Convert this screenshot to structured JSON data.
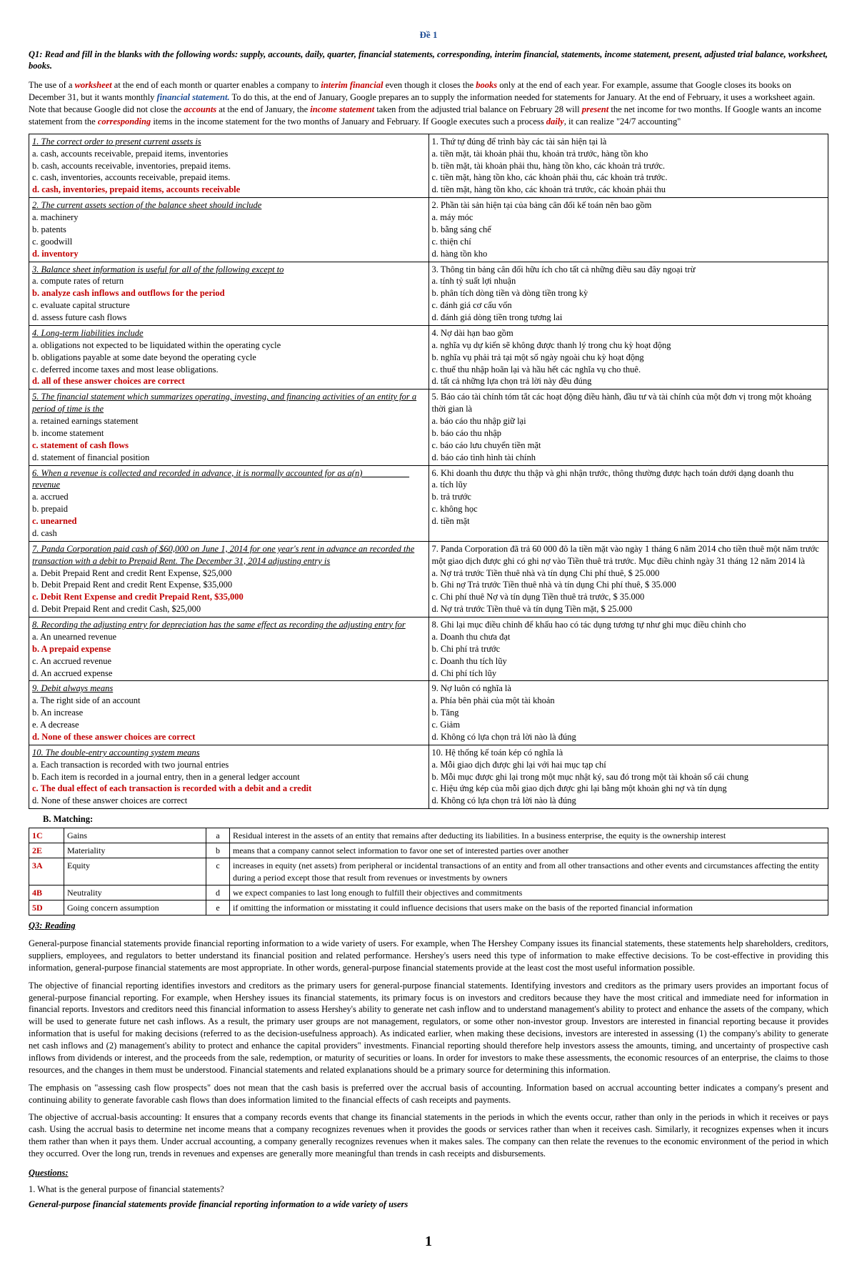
{
  "header": "Đề 1",
  "q1_prompt": "Q1: Read and fill in the blanks with the following words: supply, accounts, daily, quarter, financial statements, corresponding, interim financial, statements, income statement, present, adjusted trial balance, worksheet, books.",
  "para": {
    "p1a": "The use of a ",
    "w1": "worksheet",
    "p1b": " at the end of each month or quarter enables a company to ",
    "w2": "interim financial",
    "p1c": " even though it closes the ",
    "w3": "books",
    "p1d": " only at the end of each year. For example, assume that Google closes its books on December 31, but it wants monthly ",
    "w4": "financial statement.",
    "p1e": " To do this, at the end of January, Google prepares an to supply the information needed for statements for January. At the end of February, it uses a worksheet again. Note that because Google did not close the ",
    "w5": "accounts",
    "p1f": " at the end of January, the ",
    "w6": "income statement",
    "p1g": " taken from the adjusted trial balance on February 28 will ",
    "w7": "present",
    "p1h": " the net income for two months. If Google wants an income statement from the ",
    "w8": "corresponding",
    "p1i": " items in the income statement for the two months of January and February. If Google executes such a process ",
    "w9": "daily",
    "p1j": ", it can realize \"24/7 accounting\""
  },
  "q2": [
    {
      "qen": "1. The correct order to present current assets is",
      "qvi": "1. Thứ tự đúng để trình bày các tài sản hiện tại là",
      "en": [
        {
          "t": "a. cash, accounts receivable, prepaid items, inventories",
          "c": false
        },
        {
          "t": "b. cash, accounts receivable, inventories, prepaid items.",
          "c": false
        },
        {
          "t": "c. cash, inventories, accounts receivable, prepaid items.",
          "c": false
        },
        {
          "t": "d. cash, inventories, prepaid items, accounts receivable",
          "c": true
        }
      ],
      "vi": [
        {
          "t": "a. tiền mặt, tài khoản phải thu, khoản trả trước, hàng tồn kho",
          "c": false
        },
        {
          "t": "b. tiền mặt, tài khoản phải thu, hàng tồn kho, các khoản trả trước.",
          "c": false
        },
        {
          "t": "c. tiền mặt, hàng tồn kho, các khoản phải thu, các khoản trả trước.",
          "c": false
        },
        {
          "t": "d. tiền mặt, hàng tồn kho, các khoản trả trước, các khoản phải thu",
          "c": false
        }
      ]
    },
    {
      "qen": "2. The current assets section of the balance sheet should include",
      "qvi": "2. Phần tài sản hiện tại của bảng cân đối kế toán nên bao gồm",
      "en": [
        {
          "t": "a. machinery",
          "c": false
        },
        {
          "t": "b. patents",
          "c": false
        },
        {
          "t": "c. goodwill",
          "c": false
        },
        {
          "t": "d. inventory",
          "c": true
        }
      ],
      "vi": [
        {
          "t": "a. máy móc",
          "c": false
        },
        {
          "t": "b. bằng sáng chế",
          "c": false
        },
        {
          "t": "c. thiện chí",
          "c": false
        },
        {
          "t": "d. hàng tồn kho",
          "c": false
        }
      ]
    },
    {
      "qen": "3. Balance sheet information is useful for all of the following except to",
      "qvi": "3. Thông tin bảng cân đối hữu ích cho tất cả những điều sau đây ngoại trừ",
      "en": [
        {
          "t": "a. compute rates of return",
          "c": false
        },
        {
          "t": "b. analyze cash inflows and outflows for the period",
          "c": true
        },
        {
          "t": "c. evaluate capital structure",
          "c": false
        },
        {
          "t": "d. assess future cash flows",
          "c": false
        }
      ],
      "vi": [
        {
          "t": "a. tính tỷ suất lợi nhuận",
          "c": false
        },
        {
          "t": "b. phân tích dòng tiền và dòng tiền trong kỳ",
          "c": false
        },
        {
          "t": "c. đánh giá cơ cấu vốn",
          "c": false
        },
        {
          "t": "d. đánh giá dòng tiền trong tương lai",
          "c": false
        }
      ]
    },
    {
      "qen": "4. Long-term liabilities include",
      "qvi": "4. Nợ dài hạn bao gồm",
      "en": [
        {
          "t": "a. obligations not expected to be liquidated within the operating cycle",
          "c": false
        },
        {
          "t": "b. obligations payable at some date beyond the operating cycle",
          "c": false
        },
        {
          "t": "c. deferred income taxes and most lease obligations.",
          "c": false
        },
        {
          "t": "d. all of these answer choices are correct",
          "c": true
        }
      ],
      "vi": [
        {
          "t": "a. nghĩa vụ dự kiến sẽ không được thanh lý trong chu kỳ hoạt động",
          "c": false
        },
        {
          "t": "b. nghĩa vụ phải trả tại một số ngày ngoài chu kỳ hoạt động",
          "c": false
        },
        {
          "t": "c. thuế thu nhập hoãn lại và hầu hết các nghĩa vụ cho thuê.",
          "c": false
        },
        {
          "t": "d. tất cả những lựa chọn trả lời này đều đúng",
          "c": false
        }
      ]
    },
    {
      "qen": "5. The financial statement which summarizes operating, investing, and financing activities of an entity for a period of time is the",
      "qvi": "5. Báo cáo tài chính tóm tắt các hoạt động điều hành, đầu tư và tài chính của một đơn vị trong một khoảng thời gian là",
      "en": [
        {
          "t": "a. retained earnings statement",
          "c": false
        },
        {
          "t": "b. income statement",
          "c": false
        },
        {
          "t": "c. statement of cash flows",
          "c": true
        },
        {
          "t": "d. statement of financial position",
          "c": false
        }
      ],
      "vi": [
        {
          "t": "a. báo cáo thu nhập giữ lại",
          "c": false
        },
        {
          "t": "b. báo cáo thu nhập",
          "c": false
        },
        {
          "t": "c. báo cáo lưu chuyển tiền mặt",
          "c": false
        },
        {
          "t": "d. báo cáo tình hình tài chính",
          "c": false
        }
      ]
    },
    {
      "qen": "6. When a revenue is collected and recorded in advance, it is normally accounted for as a(n) __________ revenue",
      "qvi": "6. Khi doanh thu được thu thập và ghi nhận trước, thông thường được hạch toán dưới dạng doanh thu",
      "en": [
        {
          "t": "a. accrued",
          "c": false
        },
        {
          "t": "b. prepaid",
          "c": false
        },
        {
          "t": "c. unearned",
          "c": true
        },
        {
          "t": "d. cash",
          "c": false
        }
      ],
      "vi": [
        {
          "t": "a. tích lũy",
          "c": false
        },
        {
          "t": "b. trả trước",
          "c": false
        },
        {
          "t": "c. không học",
          "c": false
        },
        {
          "t": "d. tiền mặt",
          "c": false
        }
      ]
    },
    {
      "qen": "7. Panda Corporation paid cash of $60,000 on June 1, 2014 for one year's rent in advance an recorded the transaction with a debit to Prepaid Rent. The December 31, 2014 adjusting entry is",
      "qvi": "7. Panda Corporation đã trả 60 000 đô la tiền mặt vào ngày 1 tháng 6 năm 2014 cho tiền thuê một năm trước một giao dịch được ghi có ghi nợ vào Tiền thuê trả trước. Mục điều chỉnh ngày 31 tháng 12 năm 2014 là",
      "en": [
        {
          "t": "a. Debit Prepaid Rent and credit Rent Expense, $25,000",
          "c": false
        },
        {
          "t": "b. Debit Prepaid Rent and credit Rent Expense, $35,000",
          "c": false
        },
        {
          "t": "c. Debit Rent Expense and credit Prepaid Rent, $35,000",
          "c": true
        },
        {
          "t": "d. Debit Prepaid Rent and credit Cash, $25,000",
          "c": false
        }
      ],
      "vi": [
        {
          "t": "a. Nợ trả trước Tiền thuê nhà và tín dụng Chi phí thuê, $ 25.000",
          "c": false
        },
        {
          "t": "b. Ghi nợ Trả trước Tiền thuê nhà và tín dụng Chi phí thuê, $ 35.000",
          "c": false
        },
        {
          "t": "c. Chi phí thuê Nợ và tín dụng Tiền thuê trả trước, $ 35.000",
          "c": false
        },
        {
          "t": "d. Nợ trả trước Tiền thuê và tín dụng Tiền mặt, $ 25.000",
          "c": false
        }
      ]
    },
    {
      "qen": "8. Recording the adjusting entry for depreciation has the same effect as recording the adjusting entry for",
      "qvi": "8. Ghi lại mục điều chỉnh để khấu hao có tác dụng tương tự như ghi mục điều chỉnh cho",
      "en": [
        {
          "t": "a. An unearned revenue",
          "c": false
        },
        {
          "t": "b. A prepaid expense",
          "c": true
        },
        {
          "t": "c. An accrued revenue",
          "c": false
        },
        {
          "t": "d. An accrued expense",
          "c": false
        }
      ],
      "vi": [
        {
          "t": "a. Doanh thu chưa đạt",
          "c": false
        },
        {
          "t": "b. Chi phí trả trước",
          "c": false
        },
        {
          "t": "c. Doanh thu tích lũy",
          "c": false
        },
        {
          "t": "d. Chi phí tích lũy",
          "c": false
        }
      ]
    },
    {
      "qen": "9. Debit always means",
      "qvi": "9. Nợ luôn có nghĩa là",
      "en": [
        {
          "t": "a. The right side of an account",
          "c": false
        },
        {
          "t": "b. An increase",
          "c": false
        },
        {
          "t": "e. A decrease",
          "c": false
        },
        {
          "t": "d. None of these answer choices are correct",
          "c": true
        }
      ],
      "vi": [
        {
          "t": "a. Phía bên phải của một tài khoản",
          "c": false
        },
        {
          "t": "b. Tăng",
          "c": false
        },
        {
          "t": "c. Giảm",
          "c": false
        },
        {
          "t": "d. Không có lựa chọn trả lời nào là đúng",
          "c": false
        }
      ]
    },
    {
      "qen": "10. The double-entry accounting system means",
      "qvi": "10. Hệ thống kế toán kép có nghĩa là",
      "en": [
        {
          "t": "a. Each transaction is recorded with two journal entries",
          "c": false
        },
        {
          "t": "b. Each item is recorded in a journal entry, then in a general ledger account",
          "c": false
        },
        {
          "t": "c. The dual effect of each transaction is recorded with a debit and a credit",
          "c": true
        },
        {
          "t": "d. None of these answer choices are correct",
          "c": false
        }
      ],
      "vi": [
        {
          "t": "a. Mỗi giao dịch được ghi lại với hai mục tạp chí",
          "c": false
        },
        {
          "t": "b. Mỗi mục được ghi lại trong một mục nhật ký, sau đó trong một tài khoản sổ cái chung",
          "c": false
        },
        {
          "t": "c. Hiệu ứng kép của mỗi giao dịch được ghi lại bằng một khoản ghi nợ và tín dụng",
          "c": false
        },
        {
          "t": "d. Không có lựa chọn trả lời nào là đúng",
          "c": false
        }
      ]
    }
  ],
  "section_b": "B. Matching:",
  "match": [
    {
      "k": "1C",
      "term": "Gains",
      "l": "a",
      "def": "Residual interest in the assets of an entity that remains after deducting its liabilities. In a business enterprise, the equity is the ownership interest"
    },
    {
      "k": "2E",
      "term": "Materiality",
      "l": "b",
      "def": "means that a company cannot select information to favor one set of interested parties over another"
    },
    {
      "k": "3A",
      "term": "Equity",
      "l": "c",
      "def": "increases in equity (net assets) from peripheral or incidental transactions of an entity and from all other transactions and other events and circumstances affecting the entity during a period except those that result from revenues or investments by owners"
    },
    {
      "k": "4B",
      "term": "Neutrality",
      "l": "d",
      "def": "we expect companies to last long enough to fulfill their objectives and commitments"
    },
    {
      "k": "5D",
      "term": "Going concern assumption",
      "l": "e",
      "def": "if omitting the information or misstating it could influence decisions that users make on the basis of the reported financial information"
    }
  ],
  "q3_h": "Q3: Reading",
  "reading": {
    "p1": "General-purpose financial statements provide financial reporting information to a wide variety of users. For example, when The Hershey Company issues its financial statements, these statements help shareholders, creditors, suppliers, employees, and regulators to better understand its financial position and related performance. Hershey's users need this type of information to make effective decisions. To be cost-effective in providing this information, general-purpose financial statements are most appropriate. In other words, general-purpose financial statements provide at the least cost the most useful information possible.",
    "p2": "The objective of financial reporting identifies investors and creditors as the primary users for general-purpose financial statements. Identifying investors and creditors as the primary users provides an important focus of general-purpose financial reporting. For example, when Hershey issues its financial statements, its primary focus is on investors and creditors because they have the most critical and immediate need for information in financial reports. Investors and creditors need this financial information to assess Hershey's ability to generate net cash inflow and to understand management's ability to protect and enhance the assets of the company, which will be used to generate future net cash inflows. As a result, the primary user groups are not management, regulators, or some other non-investor group. Investors are interested in financial reporting because it provides information that is useful for making decisions (referred to as the decision-usefulness approach). As indicated earlier, when making these decisions, investors are interested in assessing (1) the company's ability to generate net cash inflows and (2) management's ability to protect and enhance the capital providers\" investments. Financial reporting should therefore help investors assess the amounts, timing, and uncertainty of prospective cash inflows from dividends or interest, and the proceeds from the sale, redemption, or maturity of securities or loans. In order for investors to make these assessments, the economic resources of an enterprise, the claims to those resources, and the changes in them must be understood. Financial statements and related explanations should be a primary source for determining this information.",
    "p3": "The emphasis on \"assessing cash flow prospects\" does not mean that the cash basis is preferred over the accrual basis of accounting. Information based on accrual accounting better indicates a company's present and continuing ability to generate favorable cash flows than does information limited to the financial effects of cash receipts and payments.",
    "p4": "The objective of accrual-basis accounting: It ensures that a company records events that change its financial statements in the periods in which the events occur, rather than only in the periods in which it receives or pays cash. Using the accrual basis to determine net income means that a company recognizes revenues when it provides the goods or services rather than when it receives cash. Similarly, it recognizes expenses when it incurs them rather than when it pays them. Under accrual accounting, a company generally recognizes revenues when it makes sales. The company can then relate the revenues to the economic environment of the period in which they occurred. Over the long run, trends in revenues and expenses are generally more meaningful than trends in cash receipts and disbursements."
  },
  "questions_h": "Questions:",
  "qa": {
    "q1": "1. What is the general purpose of financial statements?",
    "a1": "General-purpose financial statements provide financial reporting information to a wide variety of users"
  },
  "page_num": "1"
}
